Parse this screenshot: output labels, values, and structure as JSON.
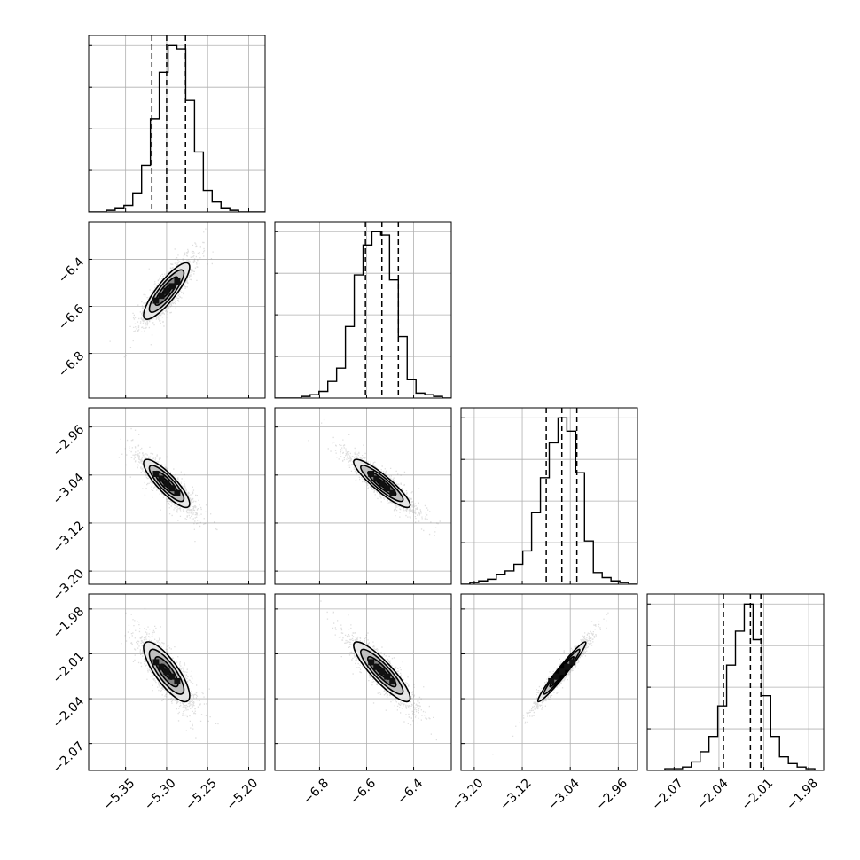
{
  "chart_data": {
    "type": "corner",
    "parameters": [
      {
        "range": [
          -5.395,
          -5.18
        ],
        "ticks": [
          -5.35,
          -5.3,
          -5.25,
          -5.2
        ],
        "tick_labels": [
          "−5.35",
          "−5.30",
          "−5.25",
          "−5.20"
        ],
        "quantiles": [
          -5.318,
          -5.3,
          -5.277
        ],
        "mean": -5.3,
        "sd": 0.014
      },
      {
        "range": [
          -6.99,
          -6.24
        ],
        "ticks": [
          -6.8,
          -6.6,
          -6.4
        ],
        "tick_labels": [
          "−6.8",
          "−6.6",
          "−6.4"
        ],
        "quantiles": [
          -6.605,
          -6.535,
          -6.465
        ],
        "mean": -6.535,
        "sd": 0.06
      },
      {
        "range": [
          -3.222,
          -2.928
        ],
        "ticks": [
          -3.2,
          -3.12,
          -3.04,
          -2.96
        ],
        "tick_labels": [
          "−3.20",
          "−3.12",
          "−3.04",
          "−2.96"
        ],
        "quantiles": [
          -3.08,
          -3.054,
          -3.029
        ],
        "mean": -3.054,
        "sd": 0.02
      },
      {
        "range": [
          -2.088,
          -1.97
        ],
        "ticks": [
          -2.07,
          -2.04,
          -2.01,
          -1.98
        ],
        "tick_labels": [
          "−2.07",
          "−2.04",
          "−2.01",
          "−1.98"
        ],
        "quantiles": [
          -2.037,
          -2.019,
          -2.012
        ],
        "mean": -2.022,
        "sd": 0.01
      }
    ],
    "correlations": [
      [
        1.0,
        0.85,
        -0.85,
        -0.8
      ],
      [
        0.85,
        1.0,
        -0.9,
        -0.88
      ],
      [
        -0.85,
        -0.9,
        1.0,
        0.97
      ],
      [
        -0.8,
        -0.88,
        0.97,
        1.0
      ]
    ],
    "histograms": [
      [
        0,
        0,
        1,
        2,
        4,
        11,
        28,
        56,
        84,
        100,
        98,
        67,
        36,
        13,
        6,
        2,
        1,
        0,
        0,
        0
      ],
      [
        0,
        0,
        0,
        1,
        2,
        4,
        10,
        18,
        43,
        74,
        92,
        100,
        98,
        71,
        37,
        11,
        3,
        2,
        1,
        0
      ],
      [
        0,
        1,
        2,
        3,
        6,
        8,
        12,
        20,
        43,
        64,
        85,
        100,
        92,
        67,
        26,
        7,
        4,
        2,
        1,
        0
      ],
      [
        0,
        0,
        1,
        1,
        2,
        5,
        11,
        20,
        38,
        62,
        82,
        98,
        77,
        44,
        20,
        8,
        4,
        2,
        1,
        0
      ]
    ],
    "histogram_bins": 20,
    "contour_levels_sigma": [
      0.5,
      1.0,
      1.5,
      2.0
    ],
    "grid": true,
    "xlabels": [
      "",
      "",
      "",
      ""
    ],
    "ylabels": [
      "",
      "",
      "",
      ""
    ]
  },
  "colors": {
    "line": "#000000",
    "grid": "#b0b0b0",
    "points": "#888888",
    "fill_levels": [
      "#e8e8e8",
      "#b8b8b8",
      "#7a7a7a",
      "#3a3a3a"
    ]
  }
}
